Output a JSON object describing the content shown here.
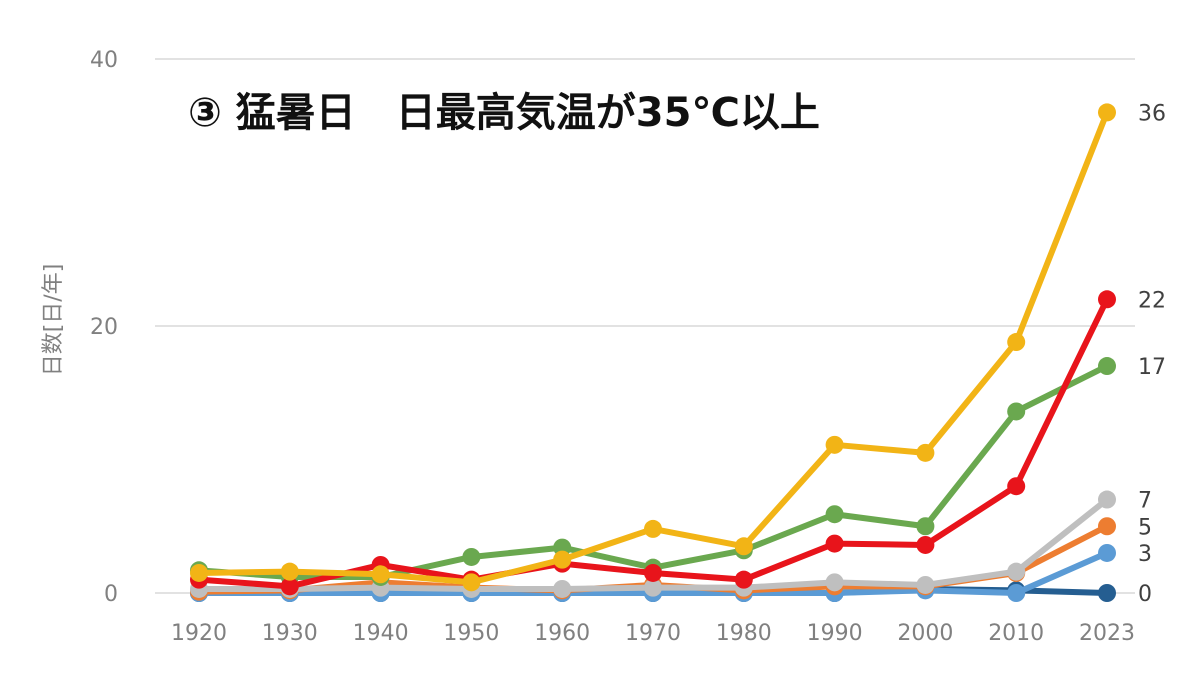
{
  "chart_data": {
    "type": "line",
    "title": "③ 猛暑日　日最高気温が35℃以上",
    "xlabel": "",
    "ylabel": "日数[日/年]",
    "x": [
      "1920",
      "1930",
      "1940",
      "1950",
      "1960",
      "1970",
      "1980",
      "1990",
      "2000",
      "2010",
      "2023"
    ],
    "ylim": [
      0,
      40
    ],
    "yticks": [
      0,
      20,
      40
    ],
    "grid": true,
    "series": [
      {
        "color": "#F2B416",
        "values": [
          1.5,
          1.6,
          1.4,
          0.8,
          2.5,
          4.8,
          3.5,
          11.1,
          10.5,
          18.8,
          36
        ],
        "end_label": "36"
      },
      {
        "color": "#E8141B",
        "values": [
          1.0,
          0.5,
          2.1,
          1.0,
          2.2,
          1.5,
          1.0,
          3.7,
          3.6,
          8.0,
          22
        ],
        "end_label": "22"
      },
      {
        "color": "#6AA84F",
        "values": [
          1.7,
          1.2,
          1.2,
          2.7,
          3.4,
          1.9,
          3.2,
          5.9,
          5.0,
          13.6,
          17
        ],
        "end_label": "17"
      },
      {
        "color": "#BFBFBF",
        "values": [
          0.3,
          0.3,
          0.4,
          0.3,
          0.3,
          0.4,
          0.4,
          0.8,
          0.6,
          1.6,
          7
        ],
        "end_label": "7"
      },
      {
        "color": "#ED7D31",
        "values": [
          0.1,
          0.2,
          0.8,
          0.4,
          0.2,
          0.6,
          0.2,
          0.5,
          0.5,
          1.5,
          5
        ],
        "end_label": "5"
      },
      {
        "color": "#5B9BD5",
        "values": [
          0,
          0,
          0,
          0,
          0,
          0,
          0,
          0,
          0.2,
          0,
          3
        ],
        "end_label": "3"
      },
      {
        "color": "#255E91",
        "values": [
          0,
          0,
          0,
          0,
          0,
          0,
          0,
          0,
          0.3,
          0.2,
          0
        ],
        "end_label": "0"
      }
    ]
  }
}
